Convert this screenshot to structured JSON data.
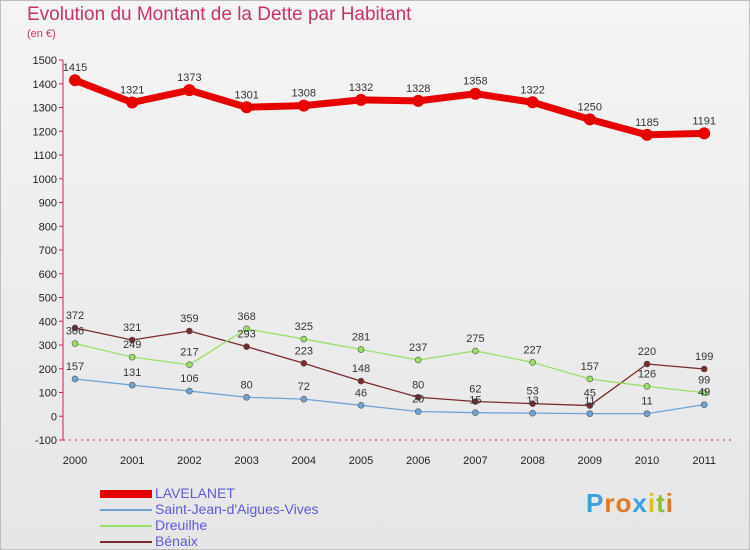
{
  "header": {
    "title": "Evolution du Montant de la Dette par Habitant",
    "subtitle": "(en €)"
  },
  "chart_data": {
    "type": "line",
    "title": "Evolution du Montant de la Dette par Habitant",
    "subtitle": "(en €)",
    "xlabel": "",
    "ylabel": "",
    "x": [
      "2000",
      "2001",
      "2002",
      "2003",
      "2004",
      "2005",
      "2006",
      "2007",
      "2008",
      "2009",
      "2010",
      "2011"
    ],
    "ylim": [
      -100,
      1500
    ],
    "yticks": [
      -100,
      0,
      100,
      200,
      300,
      400,
      500,
      600,
      700,
      800,
      900,
      1000,
      1100,
      1200,
      1300,
      1400,
      1500
    ],
    "grid": false,
    "legend_placement": "bottom-left",
    "series": [
      {
        "name": "LAVELANET",
        "color": "#e60000",
        "values": [
          1415,
          1321,
          1373,
          1301,
          1308,
          1332,
          1328,
          1358,
          1322,
          1250,
          1185,
          1191
        ]
      },
      {
        "name": "Saint-Jean-d'Aigues-Vives",
        "color": "#6fa3d6",
        "values": [
          157,
          131,
          106,
          80,
          72,
          46,
          20,
          15,
          13,
          11,
          11,
          49
        ]
      },
      {
        "name": "Dreuilhe",
        "color": "#99e066",
        "values": [
          306,
          249,
          217,
          368,
          325,
          281,
          237,
          275,
          227,
          157,
          126,
          99
        ]
      },
      {
        "name": "Bénaix",
        "color": "#7a2a2a",
        "values": [
          372,
          321,
          359,
          293,
          223,
          148,
          80,
          62,
          53,
          45,
          220,
          199
        ]
      }
    ]
  },
  "logo": {
    "letters": [
      "P",
      "r",
      "o",
      "x",
      "i",
      "t",
      "i"
    ],
    "colors": [
      "#3aa0e0",
      "#e07a20",
      "#e07a20",
      "#3aa0e0",
      "#e0c020",
      "#90c030",
      "#e07a20"
    ]
  }
}
